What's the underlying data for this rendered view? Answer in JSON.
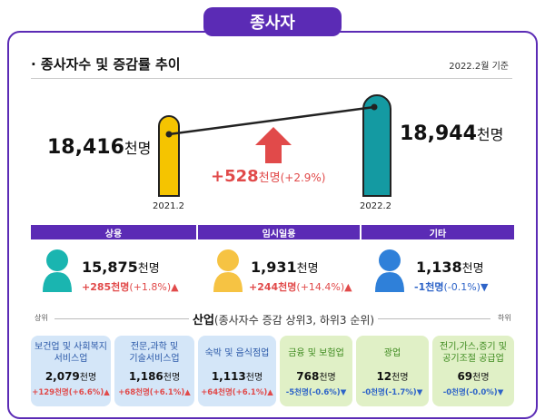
{
  "header": {
    "tab_label": "종사자"
  },
  "section": {
    "title": "· 종사자수 및 증감률 추이",
    "date_note": "2022.2월 기준"
  },
  "comparison": {
    "left": {
      "year": "2021.2",
      "value": "18,416",
      "unit": "천명"
    },
    "right": {
      "year": "2022.2",
      "value": "18,944",
      "unit": "천명"
    },
    "change": {
      "value": "+528",
      "unit": "천명",
      "pct": "(+2.9%)"
    }
  },
  "categories": [
    {
      "label": "상용",
      "value": "15,875",
      "unit": "천명",
      "change": "+285천명",
      "pct": "(+1.8%)",
      "direction": "up",
      "color": "#1ab5b0"
    },
    {
      "label": "임시일용",
      "value": "1,931",
      "unit": "천명",
      "change": "+244천명",
      "pct": "(+14.4%)",
      "direction": "up",
      "color": "#f6c343"
    },
    {
      "label": "기타",
      "value": "1,138",
      "unit": "천명",
      "change": "-1천명",
      "pct": "(-0.1%)",
      "direction": "down",
      "color": "#2f80d9"
    }
  ],
  "industry": {
    "title_bold": "산업",
    "title_rest": "(종사자수 증감 상위3, 하위3 순위)",
    "rank_top": "상위",
    "rank_bottom": "하위",
    "cards": [
      {
        "name": "보건업 및 사회복지\n서비스업",
        "value": "2,079",
        "unit": "천명",
        "change": "+129천명(+6.6%)",
        "direction": "up",
        "style": "blue"
      },
      {
        "name": "전문,과학 및\n기술서비스업",
        "value": "1,186",
        "unit": "천명",
        "change": "+68천명(+6.1%)",
        "direction": "up",
        "style": "blue"
      },
      {
        "name": "숙박 및 음식점업",
        "value": "1,113",
        "unit": "천명",
        "change": "+64천명(+6.1%)",
        "direction": "up",
        "style": "blue"
      },
      {
        "name": "금융 및 보험업",
        "value": "768",
        "unit": "천명",
        "change": "-5천명(-0.6%)",
        "direction": "down",
        "style": "green"
      },
      {
        "name": "광업",
        "value": "12",
        "unit": "천명",
        "change": "-0천명(-1.7%)",
        "direction": "down",
        "style": "green"
      },
      {
        "name": "전기,가스,증기 및\n공기조절 공급업",
        "value": "69",
        "unit": "천명",
        "change": "-0천명(-0.0%)",
        "direction": "down",
        "style": "green"
      }
    ]
  },
  "colors": {
    "accent": "#5b2bb5",
    "up": "#e14a4a",
    "down": "#2e64c8"
  }
}
